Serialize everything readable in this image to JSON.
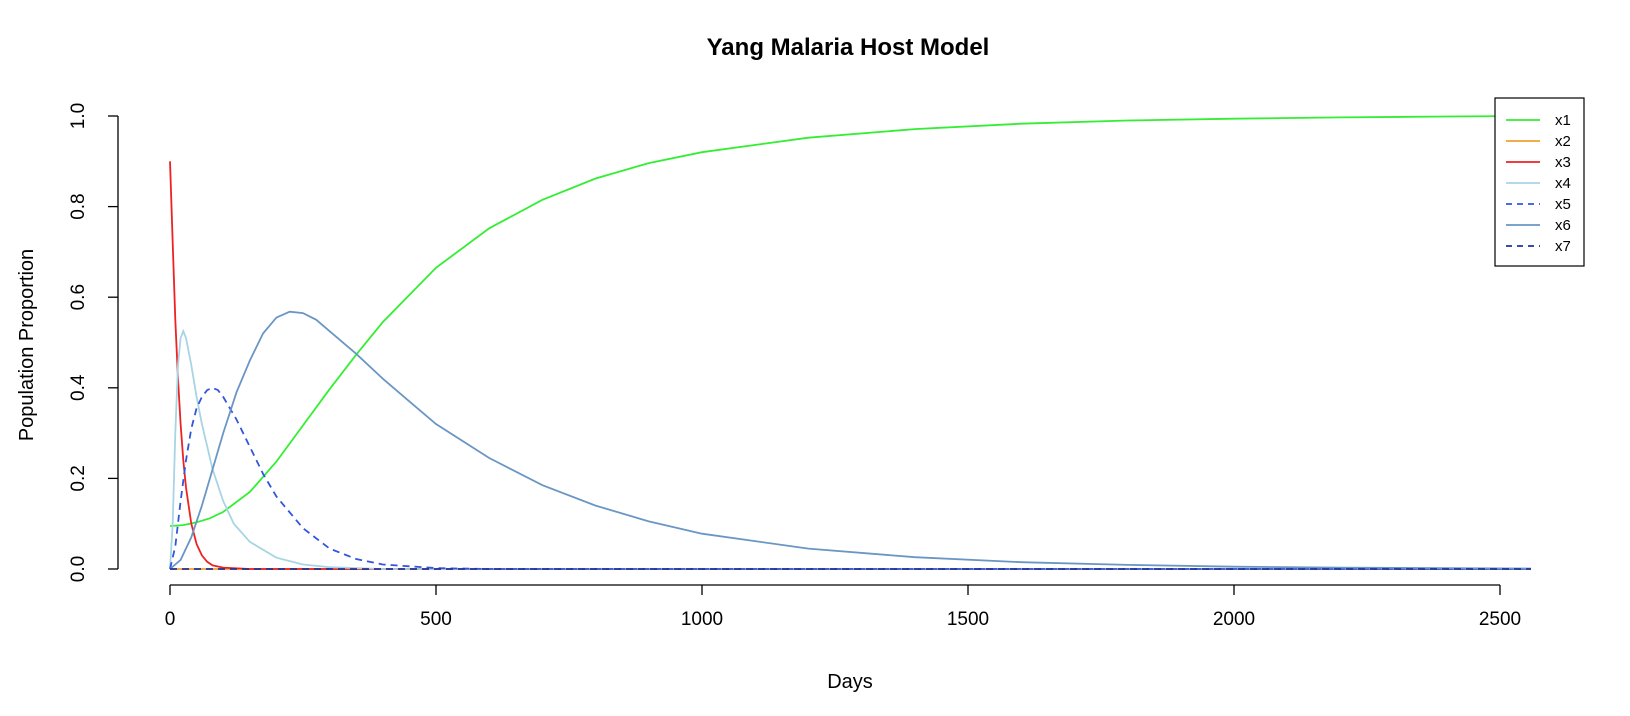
{
  "chart_data": {
    "type": "line",
    "title": "Yang Malaria Host Model",
    "xlabel": "Days",
    "ylabel": "Population Proportion",
    "xlim": [
      0,
      2560
    ],
    "ylim": [
      0,
      1.0
    ],
    "x_ticks": [
      0,
      500,
      1000,
      1500,
      2000,
      2500
    ],
    "y_ticks": [
      0.0,
      0.2,
      0.4,
      0.6,
      0.8,
      1.0
    ],
    "x_tick_labels": [
      "0",
      "500",
      "1000",
      "1500",
      "2000",
      "2500"
    ],
    "y_tick_labels": [
      "0.0",
      "0.2",
      "0.4",
      "0.6",
      "0.8",
      "1.0"
    ],
    "grid": false,
    "legend_position": "top-right",
    "series": [
      {
        "name": "x1",
        "color": "#33ee33",
        "dash": "solid",
        "x": [
          0,
          25,
          50,
          75,
          100,
          150,
          200,
          250,
          300,
          350,
          400,
          500,
          600,
          700,
          800,
          900,
          1000,
          1200,
          1400,
          1600,
          1800,
          2000,
          2200,
          2400,
          2560
        ],
        "y": [
          0.095,
          0.097,
          0.103,
          0.112,
          0.126,
          0.17,
          0.237,
          0.317,
          0.397,
          0.473,
          0.545,
          0.665,
          0.752,
          0.815,
          0.862,
          0.896,
          0.92,
          0.952,
          0.971,
          0.983,
          0.99,
          0.994,
          0.997,
          0.999,
          1.0
        ]
      },
      {
        "name": "x2",
        "color": "#f0a030",
        "dash": "solid",
        "x": [
          0,
          500,
          1000,
          1500,
          2000,
          2560
        ],
        "y": [
          0.0,
          0.0,
          0.0,
          0.0,
          0.0,
          0.0
        ]
      },
      {
        "name": "x3",
        "color": "#ee2222",
        "dash": "solid",
        "x": [
          0,
          5,
          10,
          15,
          20,
          25,
          30,
          40,
          50,
          60,
          70,
          80,
          100,
          150,
          300,
          2560
        ],
        "y": [
          0.9,
          0.72,
          0.55,
          0.42,
          0.32,
          0.24,
          0.18,
          0.1,
          0.055,
          0.03,
          0.016,
          0.008,
          0.003,
          0.0,
          0.0,
          0.0
        ]
      },
      {
        "name": "x4",
        "color": "#a8d4e4",
        "dash": "solid",
        "x": [
          0,
          5,
          10,
          15,
          20,
          25,
          30,
          40,
          50,
          60,
          80,
          100,
          120,
          150,
          200,
          250,
          300,
          400,
          2560
        ],
        "y": [
          0.0,
          0.1,
          0.3,
          0.45,
          0.51,
          0.525,
          0.51,
          0.45,
          0.38,
          0.32,
          0.22,
          0.15,
          0.1,
          0.06,
          0.025,
          0.01,
          0.004,
          0.0,
          0.0
        ]
      },
      {
        "name": "x5",
        "color": "#3355dd",
        "dash": "dashed",
        "x": [
          0,
          10,
          20,
          30,
          40,
          50,
          60,
          70,
          80,
          90,
          100,
          125,
          150,
          175,
          200,
          250,
          300,
          350,
          400,
          500,
          600,
          2560
        ],
        "y": [
          0.0,
          0.05,
          0.15,
          0.24,
          0.31,
          0.355,
          0.38,
          0.395,
          0.4,
          0.395,
          0.38,
          0.33,
          0.27,
          0.21,
          0.16,
          0.09,
          0.045,
          0.022,
          0.01,
          0.002,
          0.0,
          0.0
        ]
      },
      {
        "name": "x6",
        "color": "#6a96c4",
        "dash": "solid",
        "x": [
          0,
          20,
          40,
          60,
          80,
          100,
          125,
          150,
          175,
          200,
          225,
          250,
          275,
          300,
          350,
          400,
          450,
          500,
          600,
          700,
          800,
          900,
          1000,
          1200,
          1400,
          1600,
          1800,
          2000,
          2200,
          2400,
          2560
        ],
        "y": [
          0.0,
          0.02,
          0.07,
          0.14,
          0.22,
          0.3,
          0.39,
          0.46,
          0.52,
          0.555,
          0.568,
          0.565,
          0.55,
          0.525,
          0.475,
          0.42,
          0.37,
          0.32,
          0.245,
          0.185,
          0.14,
          0.105,
          0.078,
          0.045,
          0.026,
          0.015,
          0.009,
          0.005,
          0.003,
          0.002,
          0.001
        ]
      },
      {
        "name": "x7",
        "color": "#223399",
        "dash": "dashed",
        "x": [
          0,
          500,
          1000,
          1500,
          2000,
          2560
        ],
        "y": [
          0.0,
          0.0,
          0.0,
          0.0,
          0.0,
          0.0
        ]
      }
    ]
  }
}
